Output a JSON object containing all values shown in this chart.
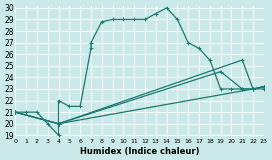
{
  "xlabel": "Humidex (Indice chaleur)",
  "background_color": "#cce9e9",
  "grid_color": "#ffffff",
  "line_color": "#1a7a6e",
  "xlim": [
    0,
    23
  ],
  "ylim": [
    18.8,
    30.2
  ],
  "xticks": [
    0,
    1,
    2,
    3,
    4,
    5,
    6,
    7,
    8,
    9,
    10,
    11,
    12,
    13,
    14,
    15,
    16,
    17,
    18,
    19,
    20,
    21,
    22,
    23
  ],
  "yticks": [
    19,
    20,
    21,
    22,
    23,
    24,
    25,
    26,
    27,
    28,
    29,
    30
  ],
  "series": [
    {
      "x": [
        0,
        1,
        2,
        3,
        4,
        4,
        5,
        6,
        7,
        7,
        8,
        9,
        10,
        11,
        12,
        13,
        14,
        15,
        16,
        17,
        18,
        19,
        20,
        21,
        22,
        23
      ],
      "y": [
        21,
        21,
        21,
        20,
        19,
        22,
        21.5,
        21.5,
        26.5,
        27,
        28.8,
        29,
        29,
        29,
        29,
        29.5,
        30,
        29,
        27,
        26.5,
        25.5,
        23,
        23,
        23,
        23,
        23
      ]
    },
    {
      "x": [
        0,
        4,
        21,
        22,
        23
      ],
      "y": [
        21,
        20,
        25.5,
        23,
        23.2
      ]
    },
    {
      "x": [
        0,
        4,
        19,
        21,
        22,
        23
      ],
      "y": [
        21,
        20,
        24.5,
        23,
        23,
        23.2
      ]
    },
    {
      "x": [
        0,
        4,
        22,
        23
      ],
      "y": [
        21,
        20,
        23,
        23.2
      ]
    }
  ]
}
